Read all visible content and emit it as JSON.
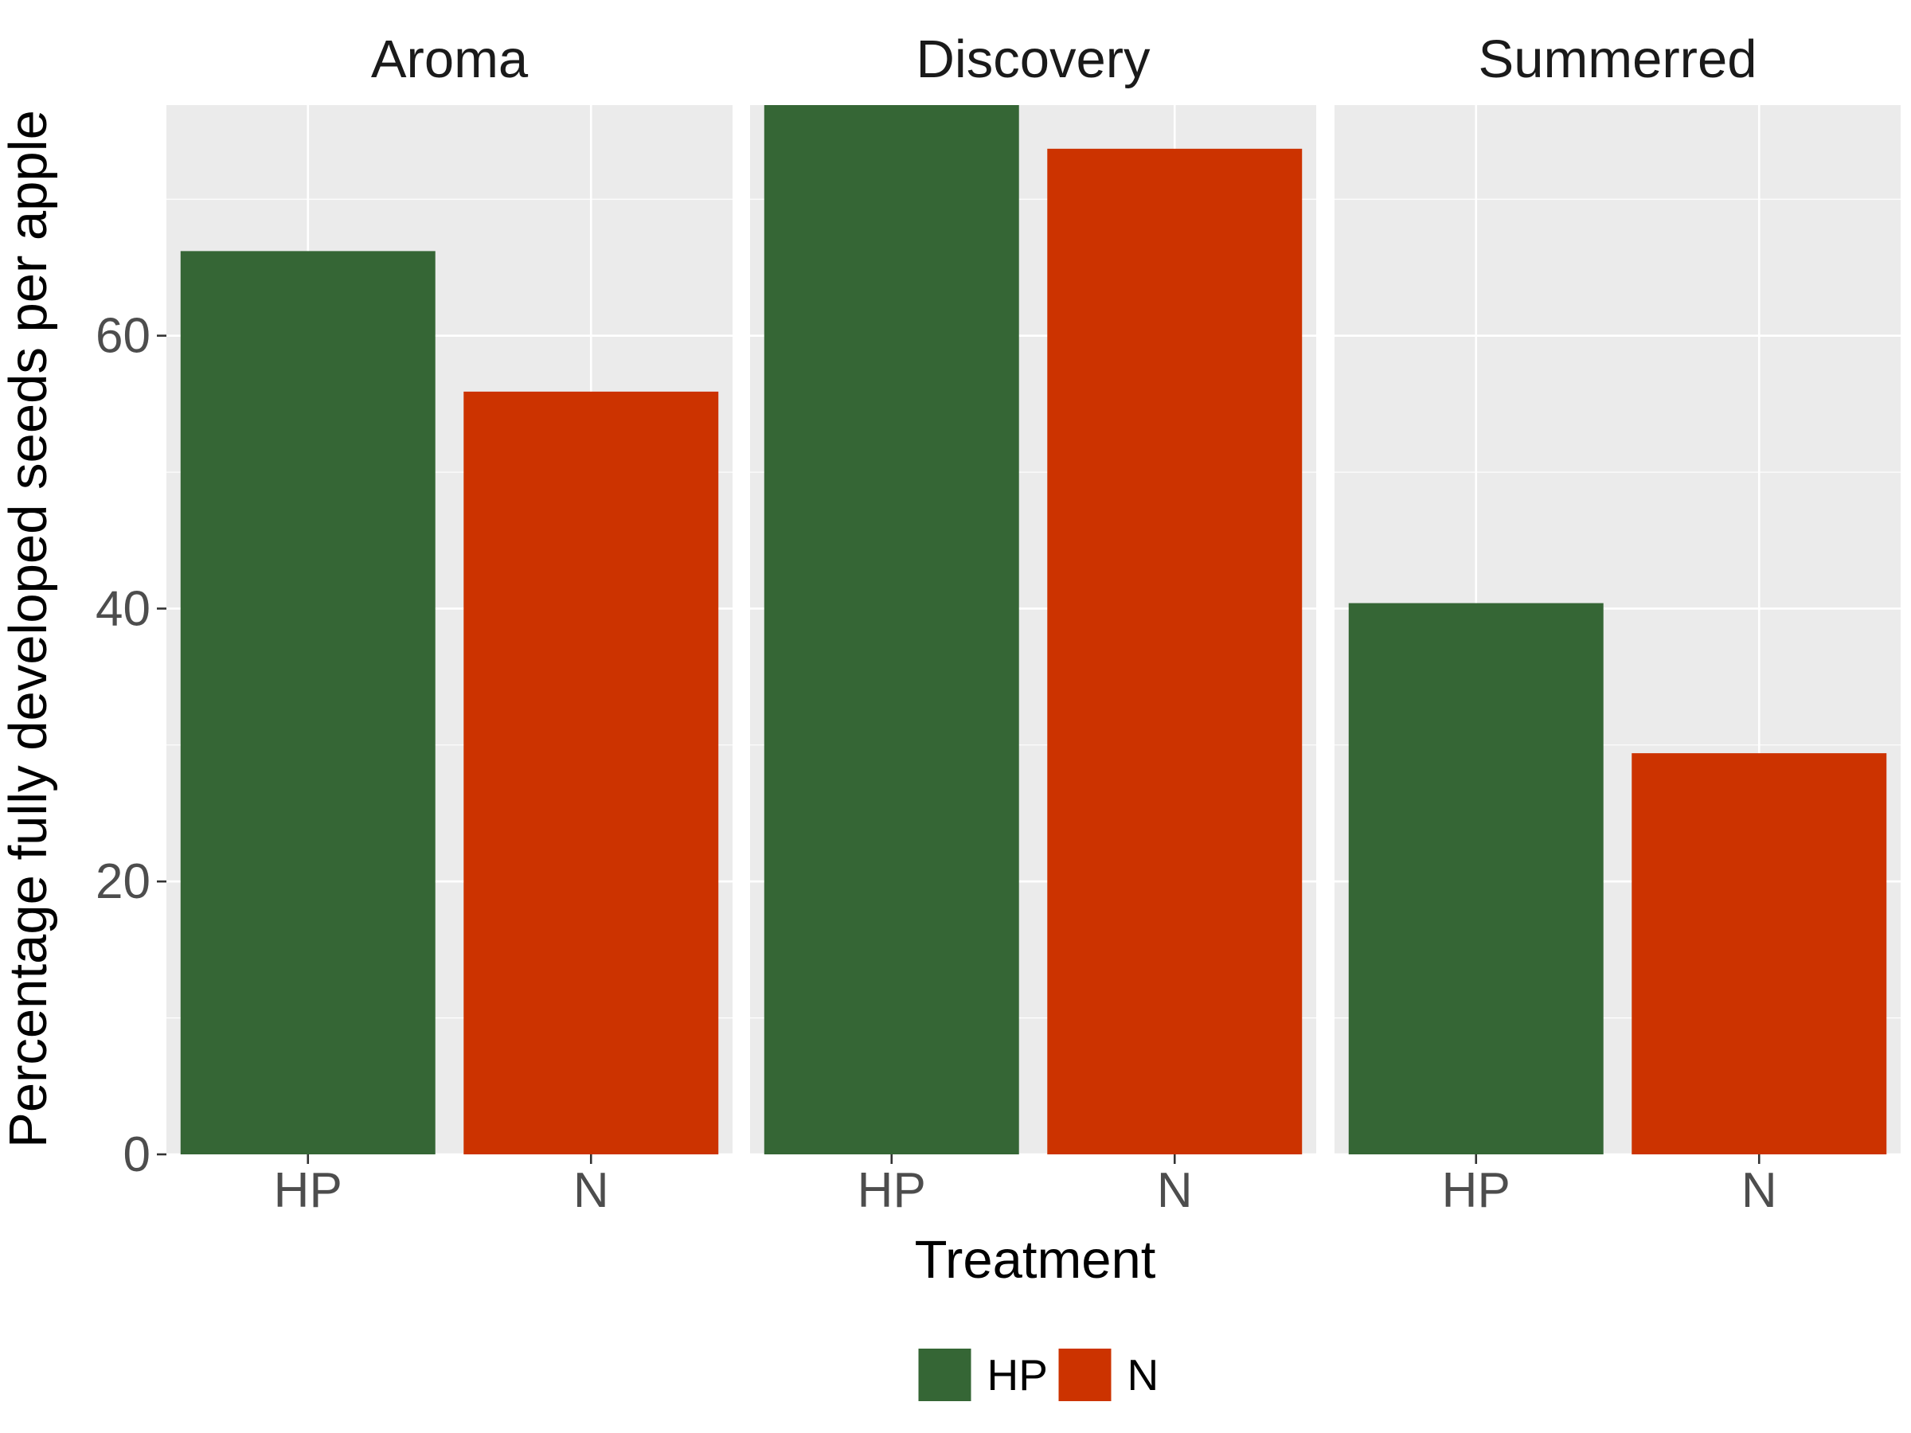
{
  "chart_data": {
    "type": "bar",
    "facets": [
      "Aroma",
      "Discovery",
      "Summerred"
    ],
    "categories": [
      "HP",
      "N"
    ],
    "values": {
      "Aroma": [
        66.2,
        55.9
      ],
      "Discovery": [
        76.9,
        73.7
      ],
      "Summerred": [
        40.4,
        29.4
      ]
    },
    "xlabel": "Treatment",
    "ylabel": "Percentage fully developed seeds per apple",
    "yticks": [
      "0",
      "20",
      "40",
      "60"
    ],
    "ylim": [
      0,
      76.9
    ],
    "grid": true,
    "legend": {
      "position": "bottom",
      "entries": [
        "HP",
        "N"
      ]
    },
    "colors": {
      "HP": "#356635",
      "N": "#cc3300",
      "panel_background": "#ebebeb",
      "gridline": "#ffffff",
      "strip_text": "#1a1a1a",
      "tick_text": "#4d4d4d"
    }
  }
}
